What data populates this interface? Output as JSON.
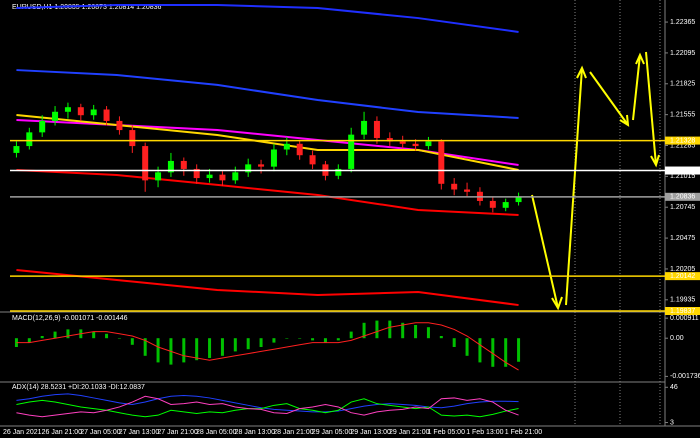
{
  "chart_data": [
    {
      "type": "candlestick",
      "title": "EURUSD,H1 1.20835 1.20873 1.20814 1.20836",
      "up_color": "#00ff00",
      "down_color": "#ff2020",
      "candles": [
        [
          1.2122,
          1.2132,
          1.2118,
          1.2128
        ],
        [
          1.2128,
          1.2144,
          1.2125,
          1.214
        ],
        [
          1.214,
          1.2155,
          1.2136,
          1.215
        ],
        [
          1.215,
          1.2163,
          1.2146,
          1.2158
        ],
        [
          1.2158,
          1.2166,
          1.2152,
          1.2162
        ],
        [
          1.2162,
          1.2165,
          1.215,
          1.2155
        ],
        [
          1.2155,
          1.2164,
          1.2151,
          1.216
        ],
        [
          1.216,
          1.2163,
          1.2146,
          1.215
        ],
        [
          1.215,
          1.2154,
          1.2138,
          1.2142
        ],
        [
          1.2142,
          1.2146,
          1.2122,
          1.2128
        ],
        [
          1.2128,
          1.2131,
          1.2088,
          1.2098
        ],
        [
          1.2098,
          1.211,
          1.2092,
          1.2105
        ],
        [
          1.2105,
          1.2122,
          1.2101,
          1.2115
        ],
        [
          1.2115,
          1.2118,
          1.2102,
          1.2108
        ],
        [
          1.2108,
          1.2112,
          1.2095,
          1.21
        ],
        [
          1.21,
          1.2108,
          1.2096,
          1.2103
        ],
        [
          1.2103,
          1.2106,
          1.2093,
          1.2098
        ],
        [
          1.2098,
          1.211,
          1.2095,
          1.2105
        ],
        [
          1.2105,
          1.2117,
          1.2101,
          1.2112
        ],
        [
          1.2112,
          1.2116,
          1.2104,
          1.211
        ],
        [
          1.211,
          1.213,
          1.2106,
          1.2125
        ],
        [
          1.2125,
          1.2136,
          1.212,
          1.213
        ],
        [
          1.213,
          1.2133,
          1.2116,
          1.212
        ],
        [
          1.212,
          1.2124,
          1.2108,
          1.2112
        ],
        [
          1.2112,
          1.2115,
          1.2098,
          1.2102
        ],
        [
          1.2102,
          1.2112,
          1.2099,
          1.2108
        ],
        [
          1.2108,
          1.2144,
          1.2105,
          1.2138
        ],
        [
          1.2138,
          1.2158,
          1.2134,
          1.215
        ],
        [
          1.215,
          1.2154,
          1.213,
          1.2135
        ],
        [
          1.2135,
          1.214,
          1.2128,
          1.2132
        ],
        [
          1.2132,
          1.2137,
          1.2126,
          1.213
        ],
        [
          1.213,
          1.2134,
          1.2124,
          1.2128
        ],
        [
          1.2128,
          1.2136,
          1.2125,
          1.2132
        ],
        [
          1.2132,
          1.2134,
          1.209,
          1.2095
        ],
        [
          1.2095,
          1.21,
          1.2085,
          1.209
        ],
        [
          1.209,
          1.2096,
          1.2084,
          1.2088
        ],
        [
          1.2088,
          1.2092,
          1.2076,
          1.208
        ],
        [
          1.208,
          1.2084,
          1.207,
          1.2074
        ],
        [
          1.2074,
          1.2082,
          1.2071,
          1.2079
        ],
        [
          1.2079,
          1.20873,
          1.2076,
          1.20836
        ]
      ],
      "ylim": [
        1.19837,
        1.22558
      ],
      "yticks": [
        1.22365,
        1.22095,
        1.21825,
        1.21555,
        1.21285,
        1.21015,
        1.20745,
        1.20475,
        1.20205,
        1.19935
      ],
      "x_labels": [
        "26 Jan 2021",
        "26 Jan 21:00",
        "27 Jan 05:00",
        "27 Jan 13:00",
        "27 Jan 21:00",
        "28 Jan 05:00",
        "28 Jan 13:00",
        "28 Jan 21:00",
        "29 Jan 05:00",
        "29 Jan 13:00",
        "29 Jan 21:00",
        "1 Feb 05:00",
        "1 Feb 13:00",
        "1 Feb 21:00"
      ],
      "lines": [
        {
          "color": "#1f2fff",
          "values": [
            1.22488,
            1.22514,
            1.22514,
            1.22488,
            1.224,
            1.22278
          ]
        },
        {
          "color": "#2040ff",
          "values": [
            1.21945,
            1.21902,
            1.21815,
            1.21683,
            1.21578,
            1.21526
          ]
        },
        {
          "color": "#ff00ff",
          "values": [
            1.21508,
            1.21464,
            1.21421,
            1.21333,
            1.21246,
            1.21114
          ]
        },
        {
          "color": "#ffd700",
          "values": [
            1.21552,
            1.21464,
            1.21377,
            1.21246,
            1.21246,
            1.21071
          ]
        },
        {
          "color": "#ff0000",
          "values": [
            1.21071,
            1.21027,
            1.2094,
            1.20852,
            1.20721,
            1.20677
          ]
        },
        {
          "color": "#ff0000",
          "values": [
            1.20196,
            1.20108,
            1.20021,
            1.19977,
            1.20003,
            1.19889
          ]
        }
      ],
      "levels": [
        {
          "value": 1.21328,
          "color": "#ffd700"
        },
        {
          "value": 1.21066,
          "color": "#ffffff"
        },
        {
          "value": 1.20836,
          "color": "#a0a0a0"
        },
        {
          "value": 1.20142,
          "color": "#ffd700"
        },
        {
          "value": 1.19837,
          "color": "#ffd700"
        }
      ]
    },
    {
      "type": "macd",
      "title": "MACD(12,26,9) -0.001071 -0.001446",
      "ylim": [
        -0.0019,
        0.0011
      ],
      "yticks": [
        0.000911,
        {
          "value": 0,
          "label": "0.00"
        },
        -0.001736
      ],
      "histogram": {
        "color": "#00c000",
        "values": [
          -0.0004,
          -0.0002,
          0.0001,
          0.0003,
          0.0004,
          0.0004,
          0.0003,
          0.0002,
          0.0,
          -0.0003,
          -0.0008,
          -0.0011,
          -0.0012,
          -0.0011,
          -0.001,
          -0.0009,
          -0.0008,
          -0.0006,
          -0.0005,
          -0.0004,
          -0.0002,
          0.0,
          0.0,
          -0.0001,
          -0.0002,
          -0.0001,
          0.0003,
          0.0007,
          0.0008,
          0.0008,
          0.0007,
          0.0006,
          0.0005,
          0.0001,
          -0.0004,
          -0.0008,
          -0.0011,
          -0.0013,
          -0.0013,
          -0.001071
        ]
      },
      "signal": {
        "color": "#ff2020",
        "values": [
          -0.0002,
          -0.0002,
          -0.0001,
          0.0,
          0.0001,
          0.0002,
          0.0003,
          0.0003,
          0.0002,
          0.0001,
          -0.0001,
          -0.0004,
          -0.0006,
          -0.0008,
          -0.0009,
          -0.001,
          -0.0009,
          -0.0008,
          -0.0007,
          -0.0006,
          -0.0005,
          -0.0004,
          -0.0003,
          -0.0002,
          -0.0002,
          -0.0002,
          -0.0001,
          0.0001,
          0.0003,
          0.0005,
          0.0006,
          0.0007,
          0.0007,
          0.0006,
          0.0004,
          0.0001,
          -0.0003,
          -0.0007,
          -0.0011,
          -0.001446
        ]
      }
    },
    {
      "type": "adx",
      "title": "ADX(14) 28.5231 +DI:20.1033 -DI:12.0837",
      "ylim": [
        0,
        50
      ],
      "yticks": [
        46,
        3
      ],
      "series": [
        {
          "color": "#2040ff",
          "values": [
            30,
            32,
            35,
            37,
            38,
            36,
            33,
            30,
            27,
            25,
            28,
            32,
            35,
            36,
            35,
            33,
            30,
            27,
            24,
            21,
            19,
            18,
            17,
            16,
            16,
            17,
            20,
            23,
            25,
            26,
            25,
            24,
            22,
            21,
            23,
            26,
            28,
            29,
            29,
            28.5231
          ]
        },
        {
          "color": "#00ff00",
          "values": [
            25,
            28,
            30,
            28,
            25,
            22,
            20,
            18,
            15,
            12,
            10,
            12,
            18,
            16,
            14,
            16,
            15,
            18,
            20,
            20,
            24,
            26,
            20,
            18,
            15,
            18,
            28,
            32,
            26,
            24,
            22,
            20,
            22,
            12,
            11,
            12,
            10,
            13,
            17,
            20.1033
          ]
        },
        {
          "color": "#ff40c0",
          "values": [
            15,
            12,
            10,
            12,
            14,
            16,
            15,
            18,
            22,
            28,
            35,
            32,
            25,
            26,
            28,
            25,
            26,
            22,
            20,
            19,
            15,
            14,
            20,
            22,
            25,
            22,
            15,
            12,
            16,
            18,
            19,
            22,
            20,
            32,
            33,
            30,
            32,
            28,
            18,
            12.0837
          ]
        }
      ]
    }
  ]
}
